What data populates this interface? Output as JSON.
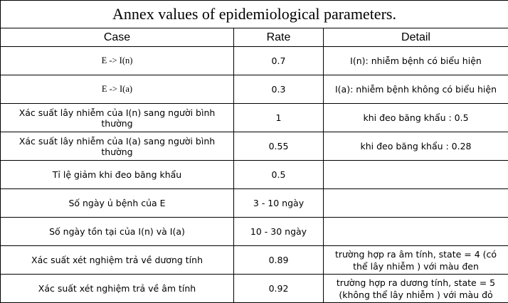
{
  "title": "Annex values of epidemiological parameters.",
  "headers": {
    "case": "Case",
    "rate": "Rate",
    "detail": "Detail"
  },
  "rows": [
    {
      "case": "E -> I(n)",
      "rate": "0.7",
      "detail": "I(n): nhiễm bệnh có biểu hiện"
    },
    {
      "case": "E -> I(a)",
      "rate": "0.3",
      "detail": "I(a): nhiễm bệnh không có biểu hiện"
    },
    {
      "case": "Xác suất lây nhiễm của I(n) sang người bình thường",
      "rate": "1",
      "detail": "khi đeo băng khẩu : 0.5"
    },
    {
      "case": "Xác suất lây nhiễm của I(a) sang người bình thường",
      "rate": "0.55",
      "detail": "khi đeo băng khẩu : 0.28"
    },
    {
      "case": "Tỉ lệ giảm khi đeo băng khẩu",
      "rate": "0.5",
      "detail": ""
    },
    {
      "case": "Số ngày ủ bệnh của E",
      "rate": "3 - 10 ngày",
      "detail": ""
    },
    {
      "case": "Số ngày tồn tại của I(n) và I(a)",
      "rate": "10 - 30 ngày",
      "detail": ""
    },
    {
      "case": "Xác suất xét nghiệm trả về dương tính",
      "rate": "0.89",
      "detail": "trường hợp ra âm tính, state = 4 (có thể lây nhiễm ) với màu đen"
    },
    {
      "case": "Xác suất xét nghiệm trả về âm tính",
      "rate": "0.92",
      "detail": "trường hợp ra dương tính, state = 5 (không thể lây nhiễm ) với màu đỏ"
    }
  ]
}
